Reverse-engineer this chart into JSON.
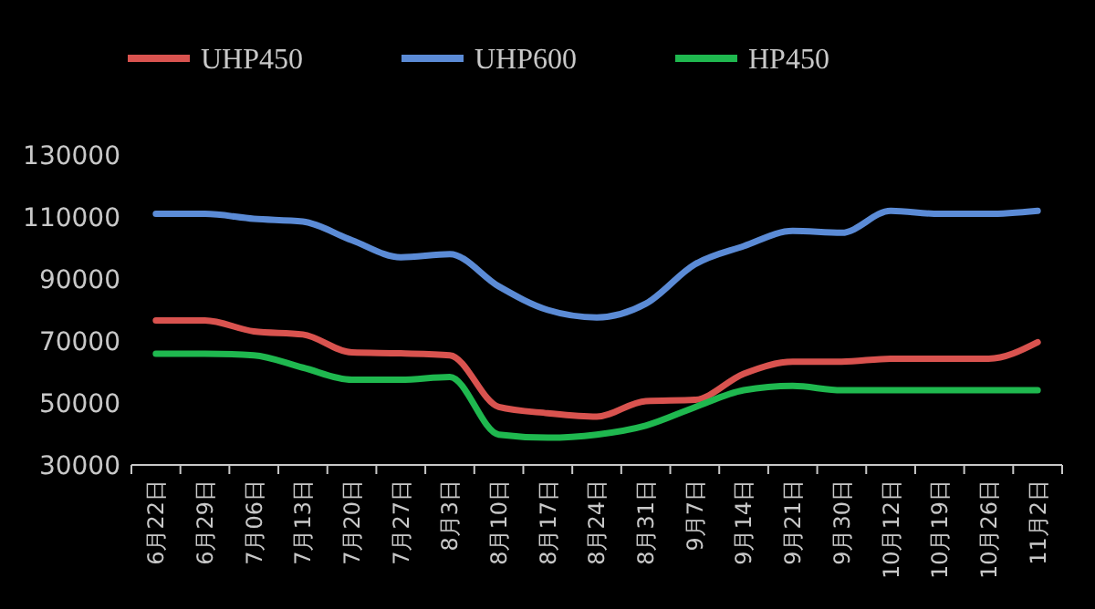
{
  "chart_data": {
    "type": "line",
    "categories": [
      "6月22日",
      "6月29日",
      "7月06日",
      "7月13日",
      "7月20日",
      "7月27日",
      "8月3日",
      "8月10日",
      "8月17日",
      "8月24日",
      "8月31日",
      "9月7日",
      "9月14日",
      "9月21日",
      "9月30日",
      "10月12日",
      "10月19日",
      "10月26日",
      "11月2日"
    ],
    "series": [
      {
        "name": "UHP450",
        "color": "#d9534f",
        "values": [
          76600,
          76600,
          73100,
          72100,
          66300,
          66000,
          65400,
          48700,
          46700,
          45600,
          50600,
          51000,
          59400,
          63300,
          63300,
          64300,
          64300,
          64300,
          69600
        ]
      },
      {
        "name": "UHP600",
        "color": "#5b8bd6",
        "values": [
          111000,
          111000,
          109400,
          108500,
          102500,
          97000,
          98000,
          87600,
          80000,
          77600,
          82000,
          94700,
          100600,
          105500,
          104900,
          112000,
          111000,
          111000,
          112000
        ]
      },
      {
        "name": "HP450",
        "color": "#1fb84f",
        "values": [
          65900,
          65900,
          65400,
          61400,
          57500,
          57500,
          58400,
          39800,
          38800,
          39800,
          42700,
          48600,
          54100,
          55500,
          54100,
          54100,
          54100,
          54100,
          54100
        ]
      }
    ],
    "ylim": [
      30000,
      130000
    ],
    "yticks": [
      30000,
      50000,
      70000,
      90000,
      110000,
      130000
    ],
    "grid": false,
    "legend": "top",
    "marker": "none",
    "line_style": "solid"
  }
}
